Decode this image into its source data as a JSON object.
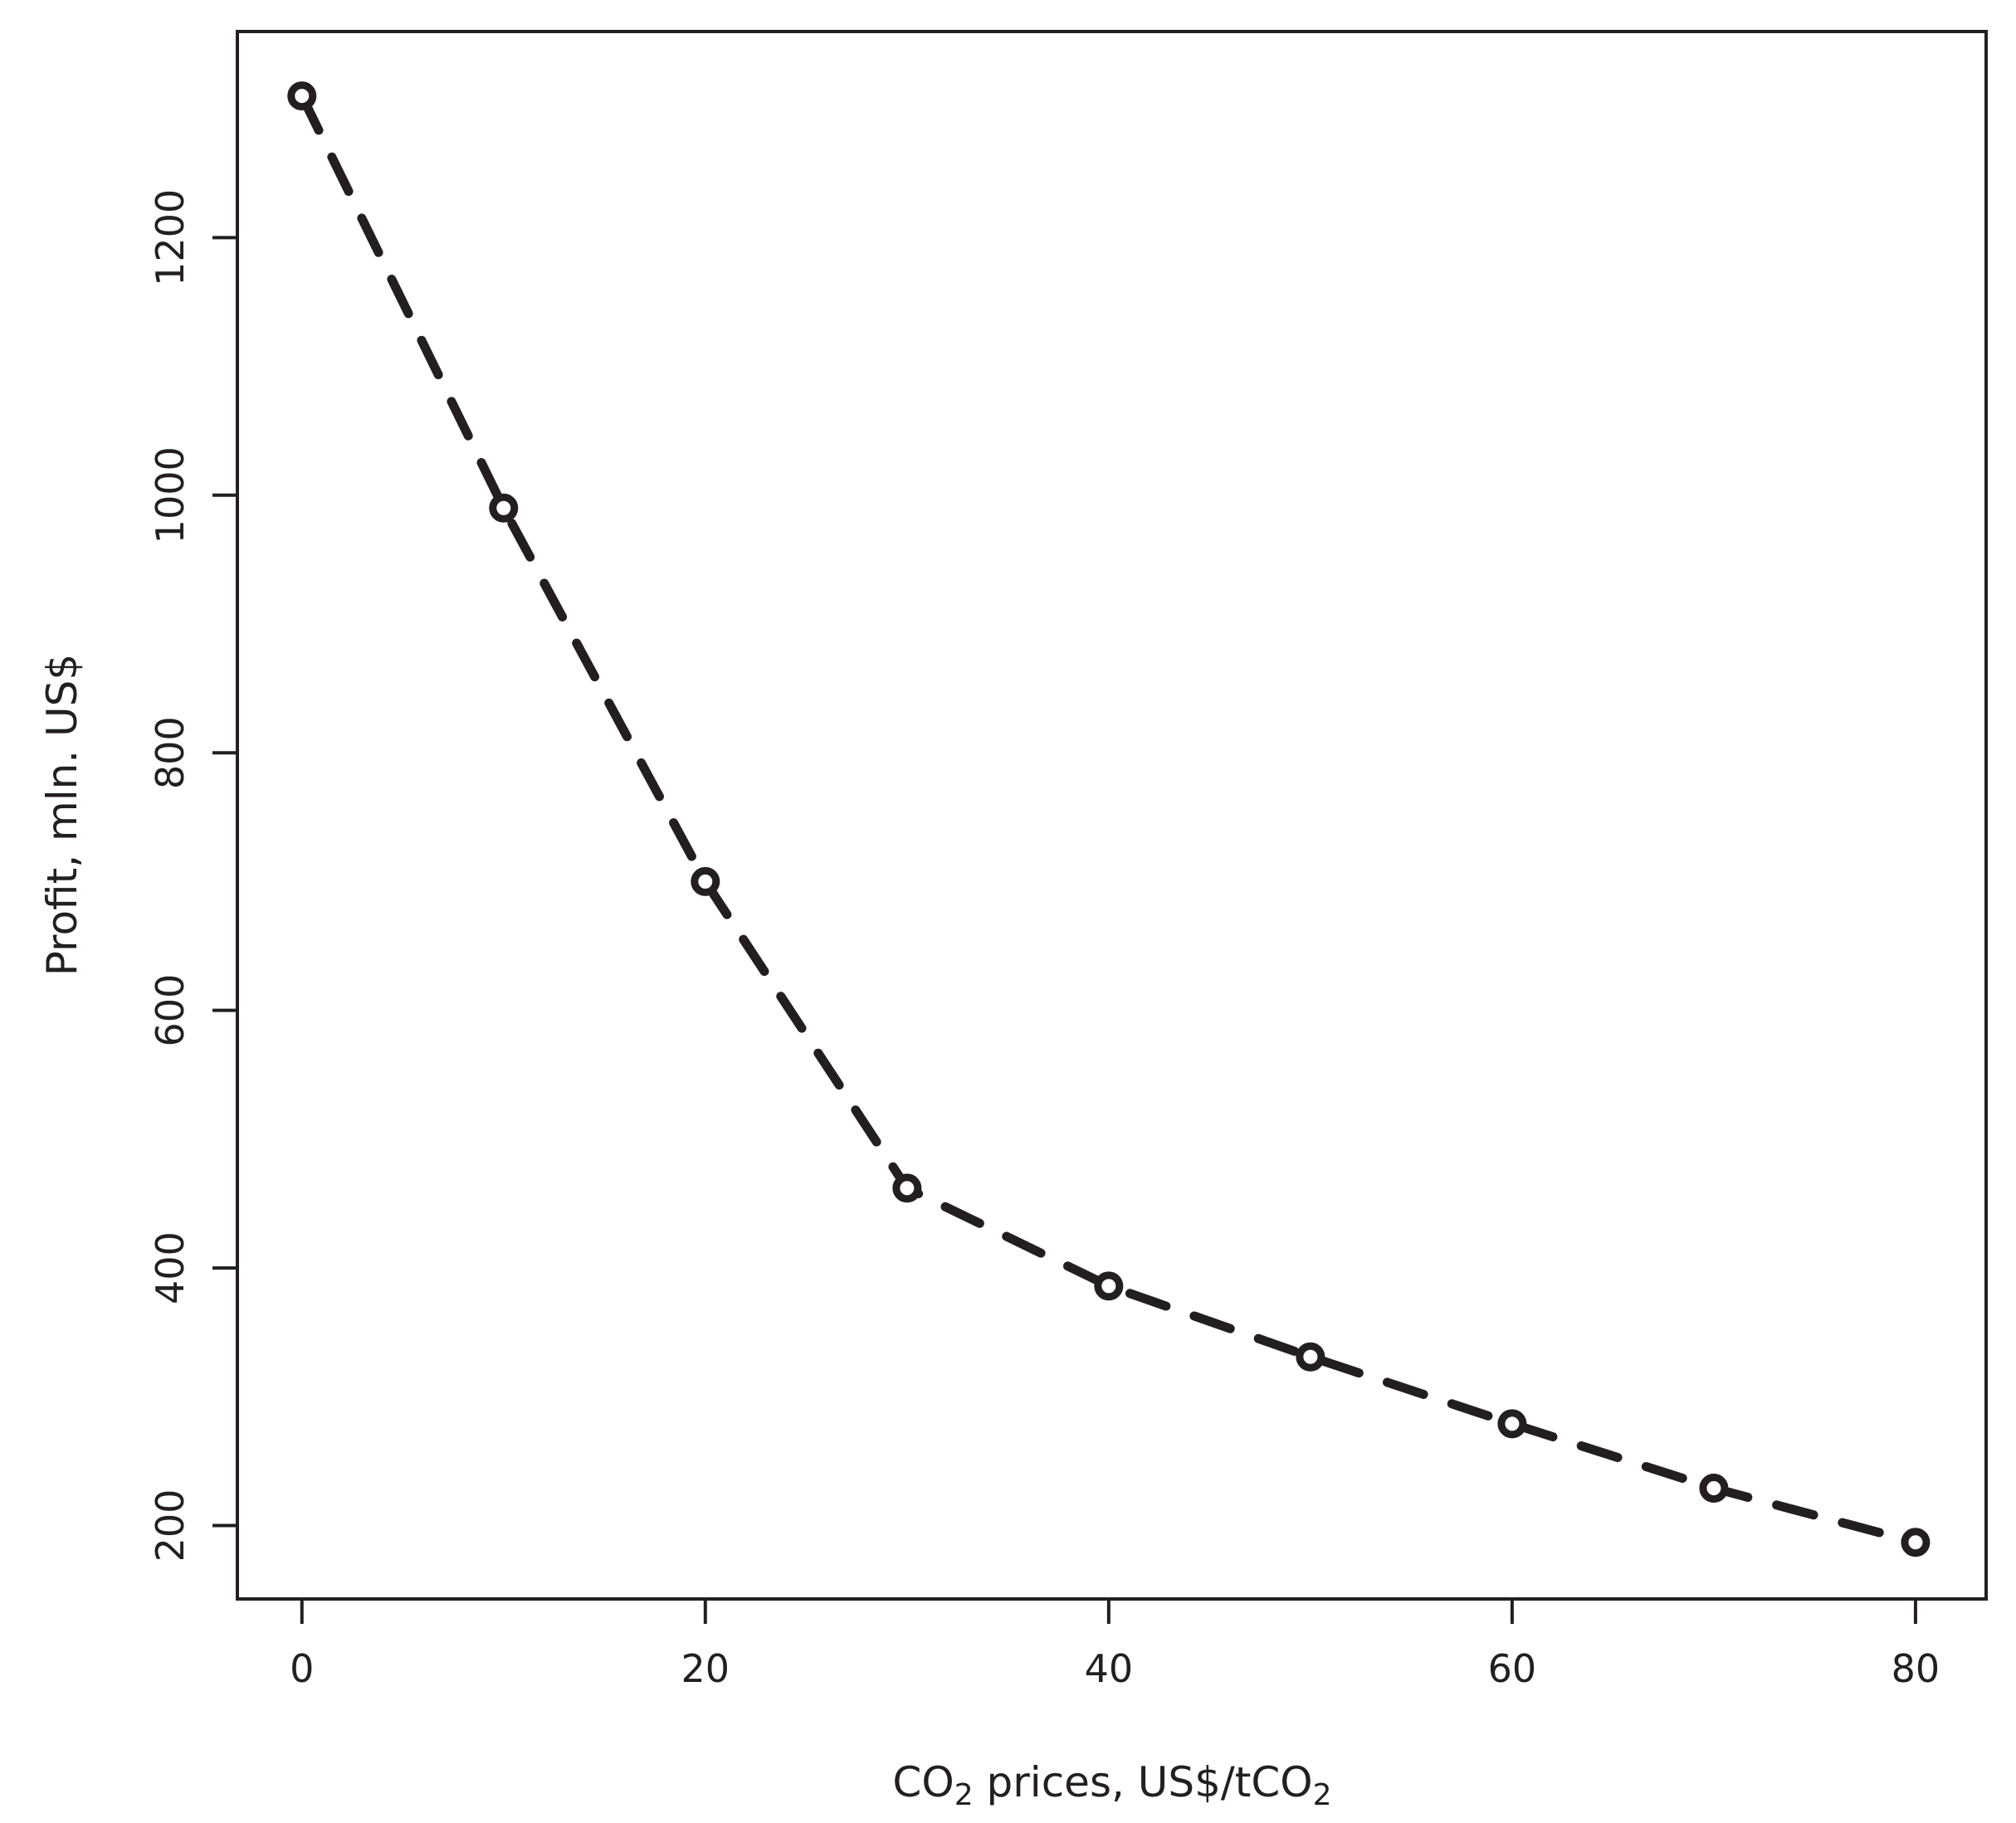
{
  "chart_data": {
    "type": "line",
    "xlabel_parts": [
      "CO",
      "2",
      " prices, US$/tCO",
      "2"
    ],
    "ylabel": "Profit, mln. US$",
    "xlim": [
      -3.2,
      83.5
    ],
    "ylim": [
      143,
      1360
    ],
    "x_ticks": [
      0,
      20,
      40,
      60,
      80
    ],
    "x_tick_labels": [
      "0",
      "20",
      "40",
      "60",
      "80"
    ],
    "y_ticks": [
      200,
      400,
      600,
      800,
      1000,
      1200
    ],
    "y_tick_labels": [
      "200",
      "400",
      "600",
      "800",
      "1000",
      "1200"
    ],
    "grid": false,
    "series": [
      {
        "line_style": "dashed",
        "marker": "open-circle",
        "color": "#231f20",
        "x": [
          0,
          10,
          20,
          30,
          40,
          50,
          60,
          70,
          80
        ],
        "y": [
          1310,
          990,
          700,
          462,
          386,
          331,
          279,
          229,
          187
        ]
      }
    ]
  }
}
